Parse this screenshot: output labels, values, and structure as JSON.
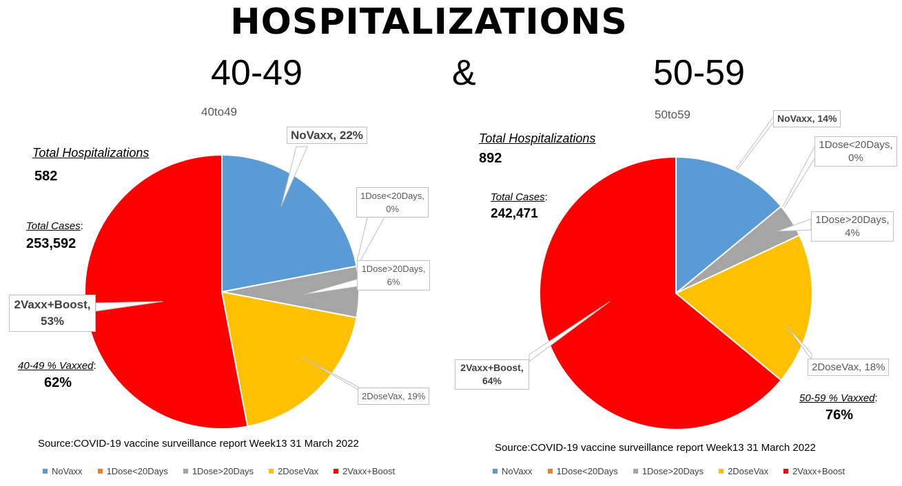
{
  "title": "HOSPITALIZATIONS",
  "left_heading": "40-49",
  "amp": "&",
  "right_heading": "50-59",
  "colors": {
    "NoVaxx": "#5b9bd5",
    "1Dose<20Days": "#ed7d31",
    "1Dose>20Days": "#a5a5a5",
    "2DoseVax": "#ffc000",
    "2Vaxx+Boost": "#ff0000"
  },
  "chart_data": [
    {
      "type": "pie",
      "title": "40to49",
      "total_hosp_label": "Total Hospitalizations",
      "total_hosp_value": "582",
      "total_cases_label": "Total Cases",
      "total_cases_value": "253,592",
      "vaxxed_label": "40-49 % Vaxxed",
      "vaxxed_value": "62%",
      "source": "Source:COVID-19 vaccine surveillance report Week13  31 March 2022",
      "slices": [
        {
          "name": "NoVaxx",
          "value": 22,
          "label": "NoVaxx, 22%"
        },
        {
          "name": "1Dose<20Days",
          "value": 0,
          "label": "1Dose<20Days, 0%"
        },
        {
          "name": "1Dose>20Days",
          "value": 6,
          "label": "1Dose>20Days, 6%"
        },
        {
          "name": "2DoseVax",
          "value": 19,
          "label": "2DoseVax, 19%"
        },
        {
          "name": "2Vaxx+Boost",
          "value": 53,
          "label": "2Vaxx+Boost, 53%"
        }
      ],
      "legend": [
        "NoVaxx",
        "1Dose<20Days",
        "1Dose>20Days",
        "2DoseVax",
        "2Vaxx+Boost"
      ]
    },
    {
      "type": "pie",
      "title": "50to59",
      "total_hosp_label": "Total Hospitalizations",
      "total_hosp_value": "892",
      "total_cases_label": "Total Cases",
      "total_cases_value": "242,471",
      "vaxxed_label": "50-59 % Vaxxed",
      "vaxxed_value": "76%",
      "source": "Source:COVID-19 vaccine surveillance report Week13  31 March 2022",
      "slices": [
        {
          "name": "NoVaxx",
          "value": 14,
          "label": "NoVaxx, 14%"
        },
        {
          "name": "1Dose<20Days",
          "value": 0,
          "label": "1Dose<20Days, 0%"
        },
        {
          "name": "1Dose>20Days",
          "value": 4,
          "label": "1Dose>20Days, 4%"
        },
        {
          "name": "2DoseVax",
          "value": 18,
          "label": "2DoseVax, 18%"
        },
        {
          "name": "2Vaxx+Boost",
          "value": 64,
          "label": "2Vaxx+Boost, 64%"
        }
      ],
      "legend": [
        "NoVaxx",
        "1Dose<20Days",
        "1Dose>20Days",
        "2DoseVax",
        "2Vaxx+Boost"
      ]
    }
  ]
}
